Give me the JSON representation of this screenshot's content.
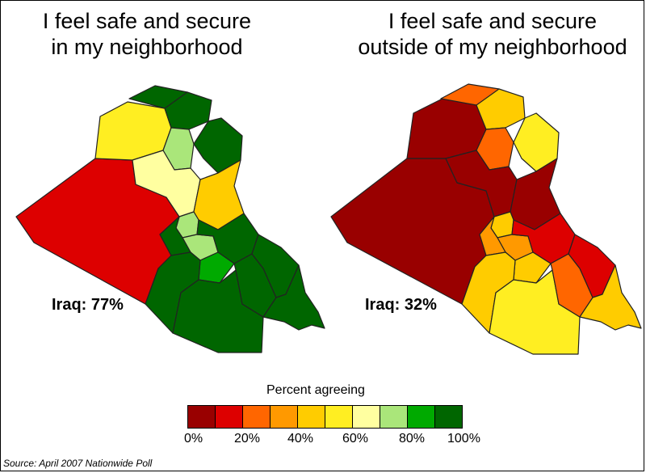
{
  "panels": {
    "left": {
      "title_line1": "I feel safe and secure",
      "title_line2": "in my neighborhood",
      "overall": "Iraq: 77%"
    },
    "right": {
      "title_line1": "I feel safe and secure",
      "title_line2": "outside of my neighborhood",
      "overall": "Iraq: 32%"
    }
  },
  "legend": {
    "title": "Percent agreeing",
    "colors": [
      "#990000",
      "#dd0000",
      "#ff6600",
      "#ff9900",
      "#ffcc00",
      "#ffee22",
      "#ffffa0",
      "#aae67a",
      "#00aa00",
      "#006600"
    ],
    "tick_labels": [
      "0%",
      "20%",
      "40%",
      "60%",
      "80%",
      "100%"
    ]
  },
  "source": "Source: April 2007 Nationwide Poll"
}
